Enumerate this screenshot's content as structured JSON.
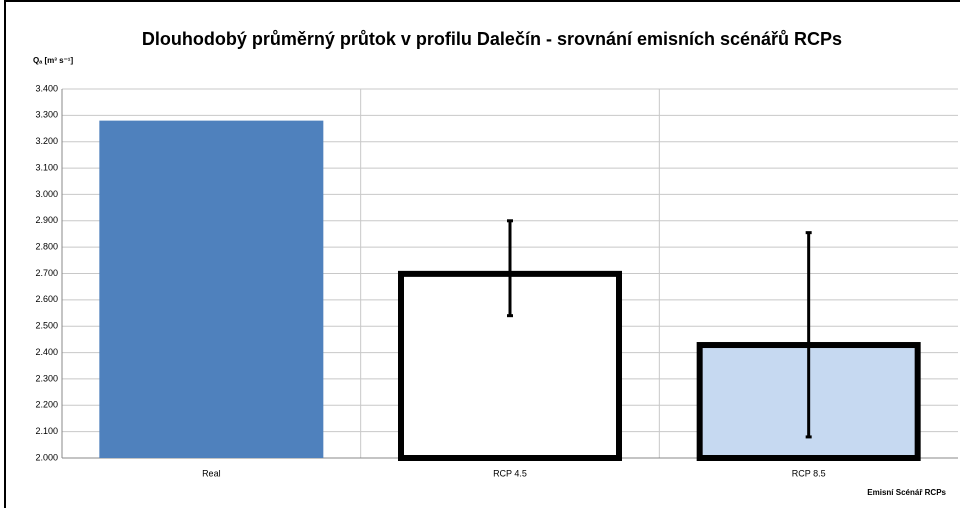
{
  "chart_data": {
    "type": "bar",
    "title": "Dlouhodobý průměrný průtok v profilu Dalečín - srovnání emisních scénářů RCPs",
    "y_label": "Qₐ [m³ s⁻¹]",
    "x_label": "Emisní Scénář RCPs",
    "categories": [
      "Real",
      "RCP 4.5",
      "RCP 8.5"
    ],
    "values": [
      3.28,
      2.71,
      2.44
    ],
    "error_low": [
      null,
      2.54,
      2.08
    ],
    "error_high": [
      null,
      2.9,
      2.855
    ],
    "colors": [
      "#4f81bd",
      "#ffffff",
      "#c6d9f1"
    ],
    "edgecolors": [
      null,
      "#000000",
      "#000000"
    ],
    "ylim": [
      2,
      3.4
    ],
    "yticks": [
      {
        "value": 2,
        "label": "2.000"
      },
      {
        "value": 2.1,
        "label": "2.100"
      },
      {
        "value": 2.2,
        "label": "2.200"
      },
      {
        "value": 2.3,
        "label": "2.300"
      },
      {
        "value": 2.4,
        "label": "2.400"
      },
      {
        "value": 2.5,
        "label": "2.500"
      },
      {
        "value": 2.6,
        "label": "2.600"
      },
      {
        "value": 2.7,
        "label": "2.700"
      },
      {
        "value": 2.8,
        "label": "2.800"
      },
      {
        "value": 2.9,
        "label": "2.900"
      },
      {
        "value": 3,
        "label": "3.000"
      },
      {
        "value": 3.1,
        "label": "3.100"
      },
      {
        "value": 3.2,
        "label": "3.200"
      },
      {
        "value": 3.3,
        "label": "3.300"
      },
      {
        "value": 3.4,
        "label": "3.400"
      }
    ],
    "grid": true
  }
}
